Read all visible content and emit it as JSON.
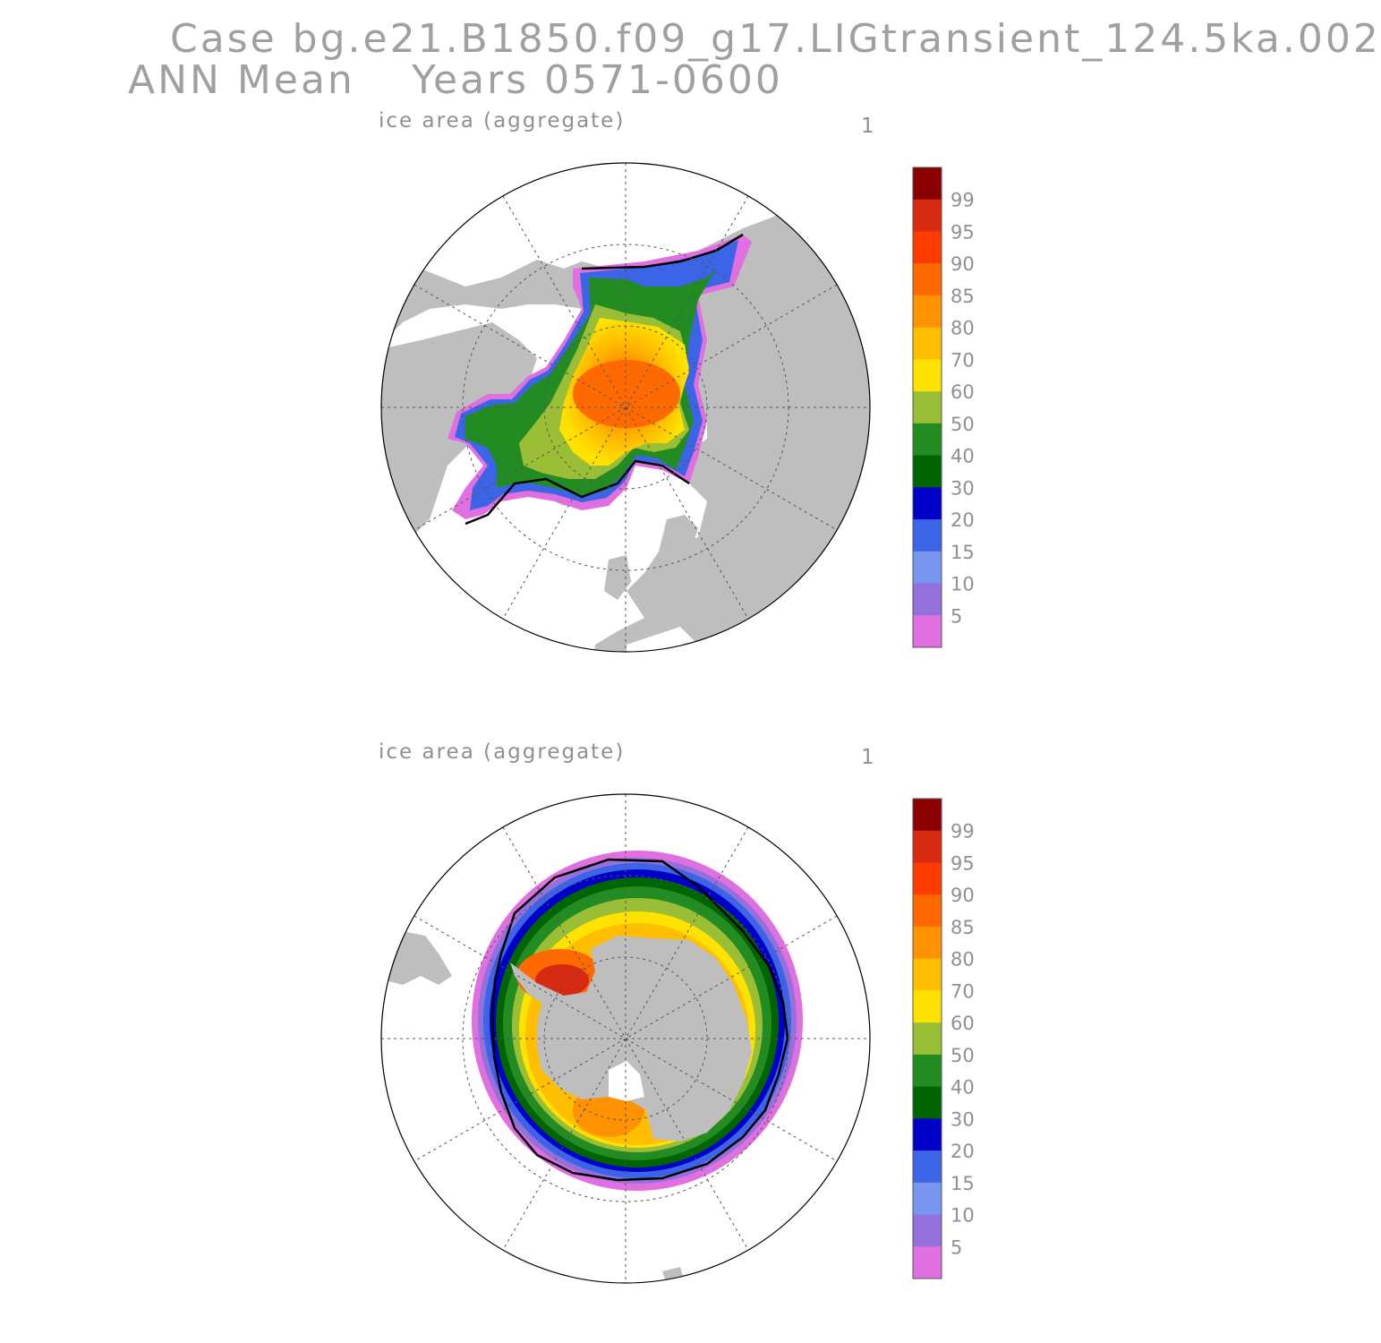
{
  "header": {
    "case_line": "Case bg.e21.B1850.f09_g17.LIGtransient_124.5ka.002",
    "season": "ANN Mean",
    "years": "Years 0571-0600"
  },
  "panels": [
    {
      "title": "ice area  (aggregate)",
      "index": "1",
      "hemisphere": "north"
    },
    {
      "title": "ice area  (aggregate)",
      "index": "1",
      "hemisphere": "south"
    }
  ],
  "colorbar": {
    "labels": [
      "99",
      "95",
      "90",
      "85",
      "80",
      "70",
      "60",
      "50",
      "40",
      "30",
      "20",
      "15",
      "10",
      "5"
    ],
    "colors": [
      "#8b0000",
      "#d62a12",
      "#ff3c00",
      "#ff6a00",
      "#ff9200",
      "#ffbe00",
      "#ffe200",
      "#9abf36",
      "#228b22",
      "#006400",
      "#0000c8",
      "#3c64e6",
      "#7896f0",
      "#9370db",
      "#e070e0"
    ]
  },
  "map_colors": {
    "land": "#bebebe",
    "ocean": "#ffffff",
    "ice_edge_line": "#000000"
  }
}
